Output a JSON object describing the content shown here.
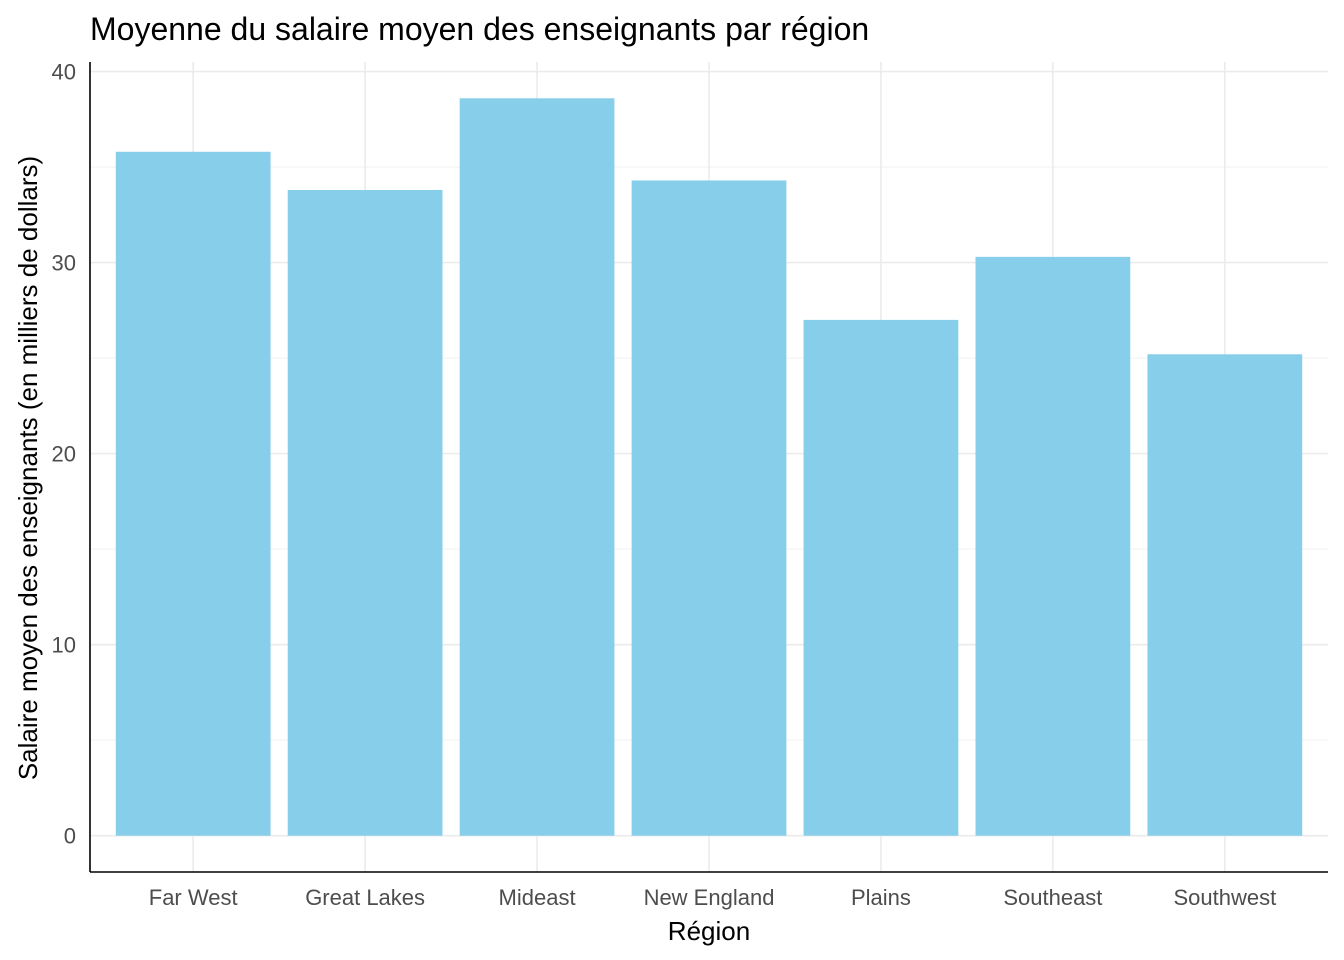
{
  "chart_data": {
    "type": "bar",
    "title": "Moyenne du salaire moyen des enseignants par région",
    "xlabel": "Région",
    "ylabel": "Salaire moyen des enseignants (en milliers de dollars)",
    "categories": [
      "Far West",
      "Great Lakes",
      "Mideast",
      "New England",
      "Plains",
      "Southeast",
      "Southwest"
    ],
    "values": [
      35.8,
      33.8,
      38.6,
      34.3,
      27.0,
      30.3,
      25.2
    ],
    "ylim": [
      -1.9,
      40.5
    ],
    "yticks": [
      0,
      10,
      20,
      30,
      40
    ],
    "ytick_labels": [
      "0",
      "10",
      "20",
      "30",
      "40"
    ],
    "grid": true,
    "bar_color": "#87CEEB"
  }
}
